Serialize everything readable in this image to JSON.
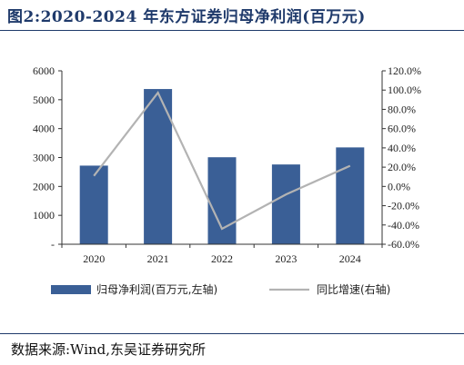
{
  "title": "图2:2020-2024 年东方证券归母净利润(百万元)",
  "source": "数据来源:Wind,东吴证券研究所",
  "chart_data": {
    "type": "bar+line",
    "categories": [
      "2020",
      "2021",
      "2022",
      "2023",
      "2024"
    ],
    "series": [
      {
        "name": "归母净利润(百万元,左轴)",
        "type": "bar",
        "axis": "left",
        "color": "#3a5f96",
        "values": [
          2720,
          5370,
          3010,
          2760,
          3350
        ]
      },
      {
        "name": "同比增速(右轴)",
        "type": "line",
        "axis": "right",
        "color": "#b3b3b3",
        "values": [
          11.0,
          97.3,
          -44.0,
          -8.3,
          21.4
        ]
      }
    ],
    "left_axis": {
      "min": 0,
      "max": 6000,
      "step": 1000,
      "ticks": [
        "-",
        "1000",
        "2000",
        "3000",
        "4000",
        "5000",
        "6000"
      ]
    },
    "right_axis": {
      "min": -60,
      "max": 120,
      "step": 20,
      "ticks": [
        "-60.0%",
        "-40.0%",
        "-20.0%",
        "0.0%",
        "20.0%",
        "40.0%",
        "60.0%",
        "80.0%",
        "100.0%",
        "120.0%"
      ]
    },
    "grid": false,
    "legend_position": "bottom"
  }
}
